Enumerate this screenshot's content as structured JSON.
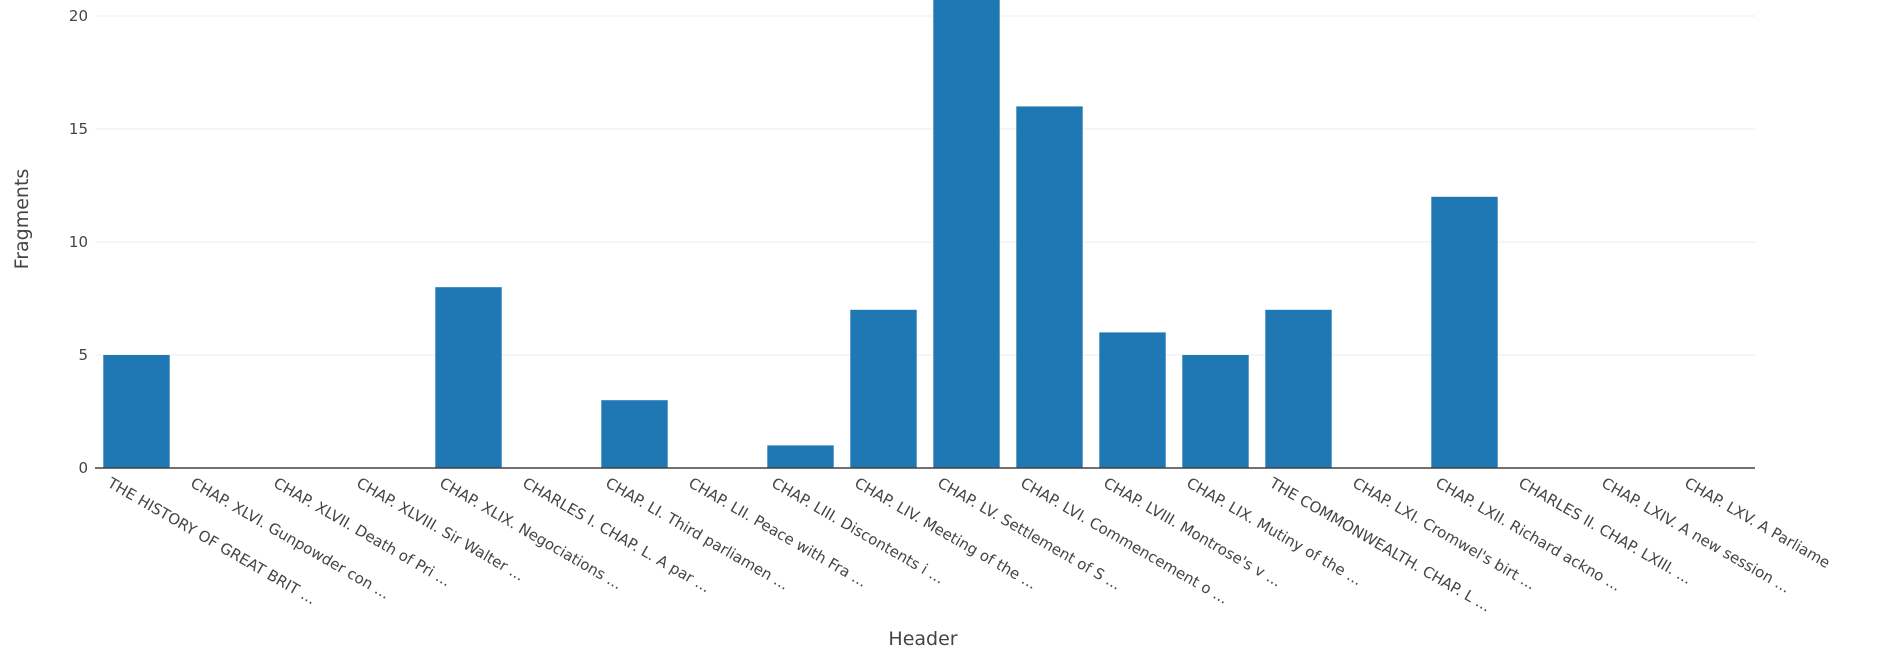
{
  "chart_data": {
    "type": "bar",
    "xlabel": "Header",
    "ylabel": "Fragments",
    "ylim": [
      0,
      21
    ],
    "yticks": [
      0,
      5,
      10,
      15,
      20
    ],
    "grid": true,
    "bar_color": "#1f77b4",
    "categories": [
      "THE HISTORY OF GREAT BRIT ...",
      "CHAP. XLVI. Gunpowder con ...",
      "CHAP. XLVII. Death of Pri ...",
      "CHAP. XLVIII. Sir Walter ...",
      "CHAP. XLIX. Negociations ...",
      "CHARLES I. CHAP. L. A par ...",
      "CHAP. LI. Third parliamen ...",
      "CHAP. LII. Peace with Fra ...",
      "CHAP. LIII. Discontents i ...",
      "CHAP. LIV. Meeting of the ...",
      "CHAP. LV. Settlement of S ...",
      "CHAP. LVI. Commencement o ...",
      "CHAP. LVIII. Montrose's v ...",
      "CHAP. LIX. Mutiny of the ...",
      "THE COMMONWEALTH. CHAP. L ...",
      "CHAP. LXI. Cromwel's birt ...",
      "CHAP. LXII. Richard ackno ...",
      "CHARLES II. CHAP. LXIII. ...",
      "CHAP. LXIV. A new session ...",
      "CHAP. LXV. A Parliame"
    ],
    "values": [
      5,
      0,
      0,
      0,
      8,
      0,
      3,
      0,
      1,
      7,
      21,
      16,
      6,
      5,
      7,
      0,
      12,
      0,
      0,
      0
    ]
  }
}
